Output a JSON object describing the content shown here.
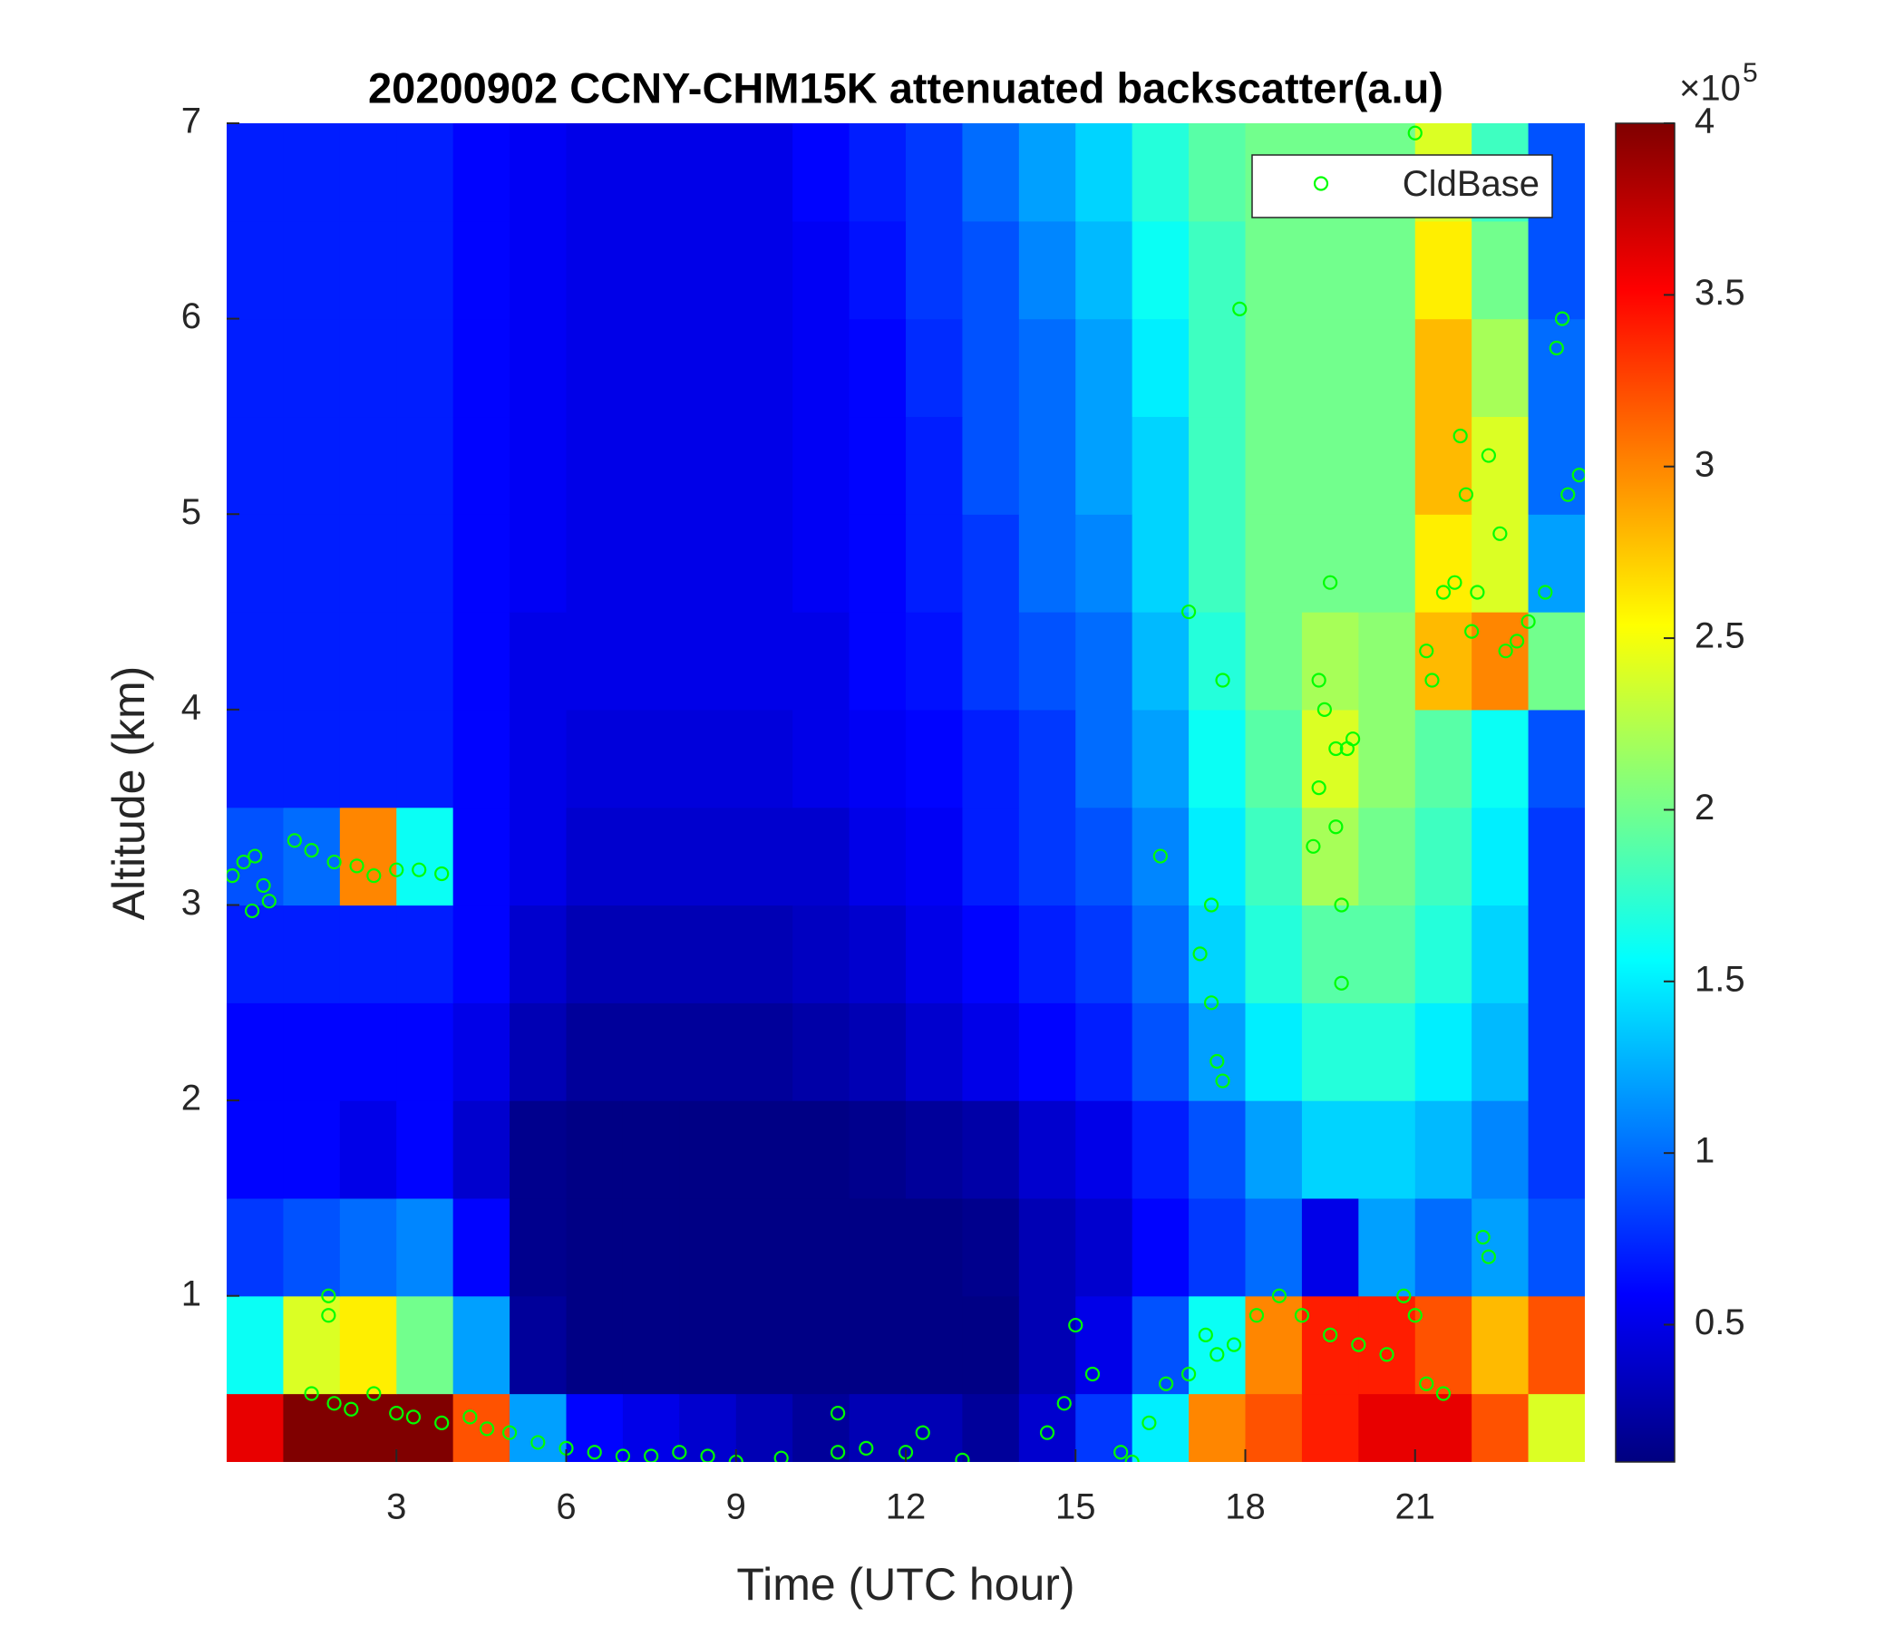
{
  "chart_data": {
    "type": "heatmap",
    "title": "20200902 CCNY-CHM15K attenuated backscatter(a.u)",
    "xlabel": "Time (UTC hour)",
    "ylabel": "Altitude (km)",
    "xlim": [
      0,
      24
    ],
    "xticks": [
      3,
      6,
      9,
      12,
      15,
      18,
      21
    ],
    "ylim": [
      0.15,
      7
    ],
    "yticks": [
      1,
      2,
      3,
      4,
      5,
      6,
      7
    ],
    "colormap": "jet",
    "clim": [
      0.1,
      4
    ],
    "cticks": [
      0.5,
      1,
      1.5,
      2,
      2.5,
      3,
      3.5,
      4
    ],
    "colorbar_multiplier": "×10",
    "colorbar_exponent": "5",
    "legend": "upper right",
    "x": [
      0.5,
      1.5,
      2.5,
      3.5,
      4.5,
      5.5,
      6.5,
      7.5,
      8.5,
      9.5,
      10.5,
      11.5,
      12.5,
      13.5,
      14.5,
      15.5,
      16.5,
      17.5,
      18.5,
      19.5,
      20.5,
      21.5,
      22.5,
      23.5
    ],
    "y": [
      0.25,
      0.75,
      1.25,
      1.75,
      2.25,
      2.75,
      3.25,
      3.75,
      4.25,
      4.75,
      5.25,
      5.75,
      6.25,
      6.75
    ],
    "z": [
      [
        3.6,
        4,
        4,
        4,
        3.2,
        1.2,
        0.6,
        0.5,
        0.4,
        0.3,
        0.2,
        0.3,
        0.3,
        0.2,
        0.4,
        0.8,
        1.5,
        3.0,
        3.2,
        3.4,
        3.6,
        3.6,
        3.2,
        2.4
      ],
      [
        1.6,
        2.4,
        2.6,
        2.0,
        1.2,
        0.2,
        0.12,
        0.12,
        0.12,
        0.12,
        0.12,
        0.12,
        0.12,
        0.12,
        0.3,
        0.5,
        0.9,
        1.6,
        3.0,
        3.4,
        3.4,
        3.2,
        2.8,
        3.2
      ],
      [
        0.8,
        0.9,
        1.0,
        1.1,
        0.6,
        0.15,
        0.12,
        0.12,
        0.12,
        0.12,
        0.12,
        0.12,
        0.12,
        0.15,
        0.3,
        0.4,
        0.6,
        0.8,
        1.0,
        0.5,
        1.2,
        1.0,
        1.2,
        0.9
      ],
      [
        0.6,
        0.6,
        0.5,
        0.6,
        0.4,
        0.15,
        0.12,
        0.12,
        0.12,
        0.12,
        0.12,
        0.15,
        0.2,
        0.25,
        0.4,
        0.5,
        0.7,
        0.9,
        1.2,
        1.4,
        1.4,
        1.3,
        1.1,
        0.8
      ],
      [
        0.6,
        0.6,
        0.6,
        0.6,
        0.5,
        0.3,
        0.2,
        0.2,
        0.2,
        0.2,
        0.25,
        0.3,
        0.4,
        0.5,
        0.6,
        0.7,
        0.9,
        1.2,
        1.5,
        1.7,
        1.7,
        1.5,
        1.3,
        0.8
      ],
      [
        0.7,
        0.7,
        0.7,
        0.7,
        0.6,
        0.4,
        0.3,
        0.3,
        0.3,
        0.3,
        0.35,
        0.4,
        0.5,
        0.6,
        0.7,
        0.8,
        1.0,
        1.4,
        1.7,
        1.9,
        1.9,
        1.7,
        1.4,
        0.8
      ],
      [
        0.9,
        1.0,
        3.0,
        1.6,
        0.6,
        0.5,
        0.4,
        0.4,
        0.4,
        0.4,
        0.4,
        0.5,
        0.55,
        0.7,
        0.8,
        0.9,
        1.1,
        1.5,
        1.8,
        2.2,
        2.0,
        1.8,
        1.5,
        0.8
      ],
      [
        0.7,
        0.7,
        0.7,
        0.7,
        0.6,
        0.5,
        0.45,
        0.45,
        0.45,
        0.45,
        0.5,
        0.55,
        0.6,
        0.7,
        0.8,
        1.0,
        1.2,
        1.6,
        1.9,
        2.4,
        2.1,
        1.9,
        1.6,
        0.9
      ],
      [
        0.7,
        0.7,
        0.7,
        0.7,
        0.6,
        0.5,
        0.5,
        0.5,
        0.5,
        0.5,
        0.5,
        0.6,
        0.65,
        0.8,
        0.9,
        1.0,
        1.3,
        1.7,
        2.0,
        2.2,
        2.1,
        2.8,
        3.0,
        2.0
      ],
      [
        0.7,
        0.7,
        0.7,
        0.7,
        0.6,
        0.55,
        0.5,
        0.5,
        0.5,
        0.5,
        0.55,
        0.6,
        0.7,
        0.8,
        1.0,
        1.1,
        1.4,
        1.8,
        2.0,
        2.0,
        2.0,
        2.6,
        2.4,
        1.2
      ],
      [
        0.7,
        0.7,
        0.7,
        0.7,
        0.6,
        0.55,
        0.5,
        0.5,
        0.5,
        0.5,
        0.55,
        0.6,
        0.7,
        0.9,
        1.0,
        1.2,
        1.4,
        1.8,
        2.0,
        2.0,
        2.0,
        2.8,
        2.4,
        1.0
      ],
      [
        0.7,
        0.7,
        0.7,
        0.7,
        0.6,
        0.55,
        0.5,
        0.5,
        0.5,
        0.5,
        0.55,
        0.6,
        0.75,
        0.9,
        1.0,
        1.2,
        1.5,
        1.8,
        2.0,
        2.0,
        2.0,
        2.8,
        2.2,
        1.0
      ],
      [
        0.7,
        0.7,
        0.7,
        0.7,
        0.6,
        0.55,
        0.5,
        0.5,
        0.5,
        0.5,
        0.55,
        0.65,
        0.8,
        0.9,
        1.1,
        1.3,
        1.6,
        1.8,
        2.0,
        2.0,
        2.0,
        2.6,
        2.0,
        0.9
      ],
      [
        0.7,
        0.7,
        0.7,
        0.7,
        0.6,
        0.55,
        0.5,
        0.5,
        0.5,
        0.5,
        0.6,
        0.7,
        0.8,
        1.0,
        1.2,
        1.4,
        1.7,
        1.9,
        2.0,
        2.0,
        2.0,
        2.4,
        1.8,
        0.9
      ]
    ],
    "series": [
      {
        "name": "CldBase",
        "type": "scatter",
        "color": "#00ff00",
        "x": [
          0.1,
          0.3,
          0.5,
          0.45,
          0.65,
          0.75,
          1.2,
          1.5,
          1.9,
          2.3,
          2.6,
          3.0,
          3.4,
          3.8,
          1.5,
          1.9,
          2.2,
          2.6,
          3.0,
          3.3,
          3.8,
          4.3,
          4.6,
          5.0,
          5.5,
          6.0,
          6.5,
          7.0,
          7.5,
          8.0,
          8.5,
          9.0,
          9.8,
          10.8,
          10.8,
          11.3,
          12.0,
          12.3,
          13.0,
          1.8,
          1.8,
          14.5,
          14.8,
          15.0,
          15.3,
          15.8,
          16.0,
          16.3,
          16.6,
          17.0,
          17.3,
          17.5,
          17.8,
          18.2,
          18.6,
          19.0,
          19.5,
          20.0,
          20.5,
          20.8,
          21.0,
          21.2,
          21.5,
          22.2,
          22.3,
          17.2,
          17.4,
          17.5,
          17.6,
          17.4,
          17.6,
          16.5,
          17.0,
          17.9,
          19.2,
          19.3,
          19.4,
          19.3,
          19.6,
          19.6,
          19.7,
          19.7,
          19.8,
          19.9,
          19.5,
          21.0,
          21.2,
          21.3,
          21.5,
          21.7,
          21.9,
          21.8,
          22.0,
          22.1,
          22.3,
          22.5,
          22.6,
          22.8,
          23.0,
          23.3,
          23.5,
          23.6,
          23.7,
          23.9
        ],
        "y": [
          3.15,
          3.22,
          3.25,
          2.97,
          3.1,
          3.02,
          3.33,
          3.28,
          3.22,
          3.2,
          3.15,
          3.18,
          3.18,
          3.16,
          0.5,
          0.45,
          0.42,
          0.5,
          0.4,
          0.38,
          0.35,
          0.38,
          0.32,
          0.3,
          0.25,
          0.22,
          0.2,
          0.18,
          0.18,
          0.2,
          0.18,
          0.15,
          0.17,
          0.2,
          0.4,
          0.22,
          0.2,
          0.3,
          0.16,
          0.9,
          1.0,
          0.3,
          0.45,
          0.85,
          0.6,
          0.2,
          0.15,
          0.35,
          0.55,
          0.6,
          0.8,
          0.7,
          0.75,
          0.9,
          1.0,
          0.9,
          0.8,
          0.75,
          0.7,
          1.0,
          0.9,
          0.55,
          0.5,
          1.3,
          1.2,
          2.75,
          2.5,
          2.2,
          2.1,
          3.0,
          4.15,
          3.25,
          4.5,
          6.05,
          3.3,
          3.6,
          4.0,
          4.15,
          3.8,
          3.4,
          3.0,
          2.6,
          3.8,
          3.85,
          4.65,
          6.95,
          4.3,
          4.15,
          4.6,
          4.65,
          5.1,
          5.4,
          4.4,
          4.6,
          5.3,
          4.9,
          4.3,
          4.35,
          4.45,
          4.6,
          5.85,
          6.0,
          5.1,
          5.2
        ]
      }
    ]
  }
}
